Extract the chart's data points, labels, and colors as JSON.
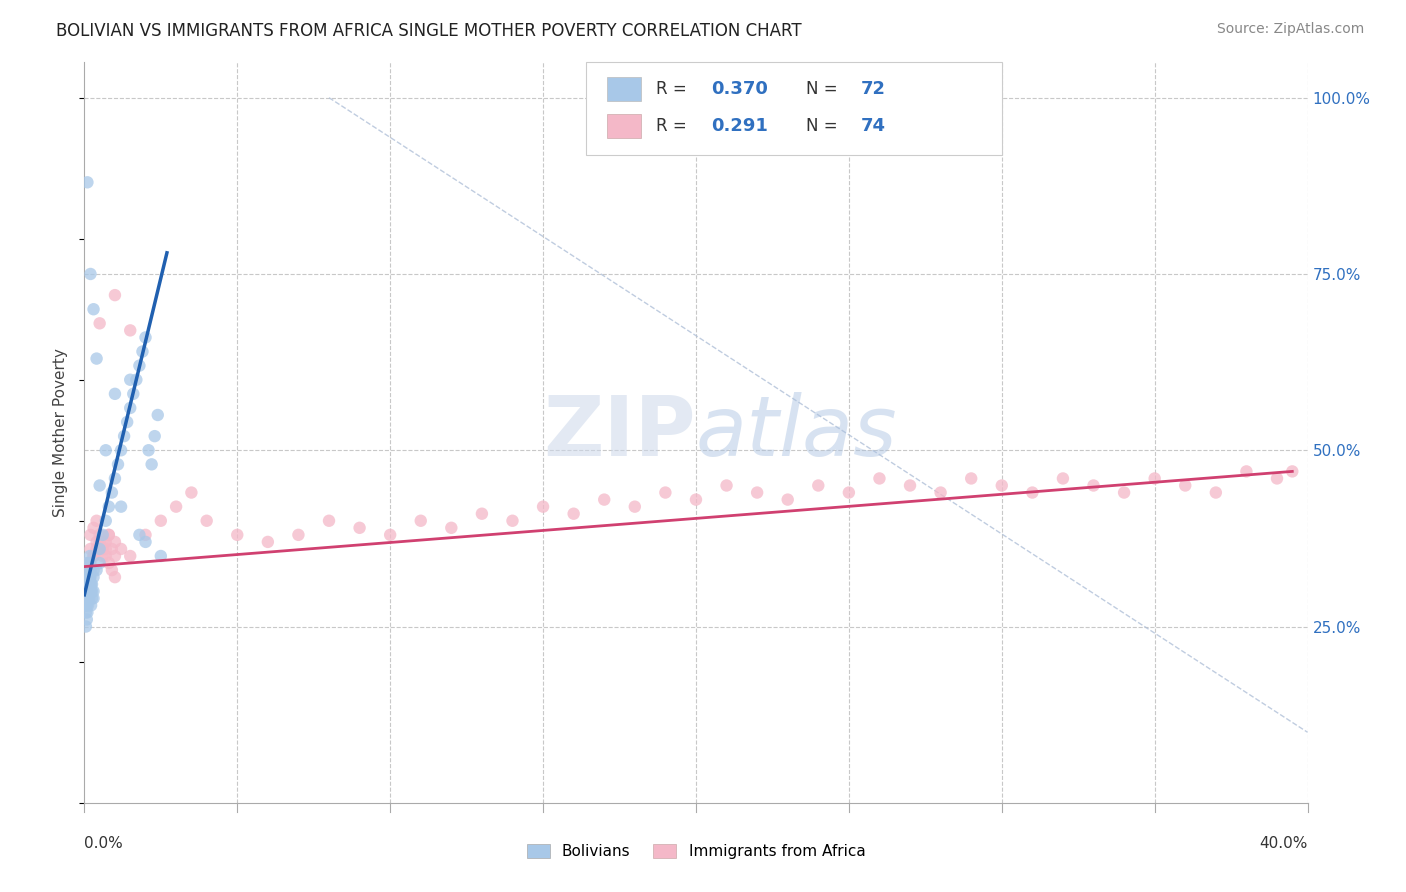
{
  "title": "BOLIVIAN VS IMMIGRANTS FROM AFRICA SINGLE MOTHER POVERTY CORRELATION CHART",
  "source": "Source: ZipAtlas.com",
  "ylabel": "Single Mother Poverty",
  "xlim": [
    0.0,
    0.4
  ],
  "ylim": [
    0.0,
    1.05
  ],
  "color_blue": "#a8c8e8",
  "color_pink": "#f4b8c8",
  "color_blue_line": "#2060b0",
  "color_pink_line": "#d04070",
  "color_diag": "#b0c8e0",
  "watermark_zip": "ZIP",
  "watermark_atlas": "atlas",
  "bolivians_x": [
    0.0005,
    0.0008,
    0.001,
    0.0012,
    0.0015,
    0.0018,
    0.002,
    0.0022,
    0.0025,
    0.003,
    0.0005,
    0.0008,
    0.001,
    0.0012,
    0.0015,
    0.0018,
    0.002,
    0.0022,
    0.0025,
    0.003,
    0.0005,
    0.0008,
    0.001,
    0.0012,
    0.0015,
    0.0018,
    0.002,
    0.0022,
    0.0025,
    0.003,
    0.0005,
    0.0008,
    0.001,
    0.0012,
    0.0015,
    0.0018,
    0.002,
    0.003,
    0.004,
    0.005,
    0.005,
    0.006,
    0.007,
    0.008,
    0.009,
    0.01,
    0.011,
    0.012,
    0.013,
    0.014,
    0.015,
    0.016,
    0.017,
    0.018,
    0.019,
    0.02,
    0.021,
    0.022,
    0.023,
    0.024,
    0.001,
    0.002,
    0.003,
    0.004,
    0.01,
    0.015,
    0.005,
    0.007,
    0.012,
    0.018,
    0.02,
    0.025
  ],
  "bolivians_y": [
    0.32,
    0.3,
    0.34,
    0.31,
    0.33,
    0.35,
    0.32,
    0.3,
    0.31,
    0.33,
    0.28,
    0.29,
    0.31,
    0.3,
    0.32,
    0.34,
    0.33,
    0.31,
    0.3,
    0.29,
    0.27,
    0.28,
    0.29,
    0.3,
    0.31,
    0.32,
    0.33,
    0.28,
    0.29,
    0.3,
    0.25,
    0.26,
    0.27,
    0.28,
    0.29,
    0.3,
    0.31,
    0.32,
    0.33,
    0.34,
    0.36,
    0.38,
    0.4,
    0.42,
    0.44,
    0.46,
    0.48,
    0.5,
    0.52,
    0.54,
    0.56,
    0.58,
    0.6,
    0.62,
    0.64,
    0.66,
    0.5,
    0.48,
    0.52,
    0.55,
    0.88,
    0.75,
    0.7,
    0.63,
    0.58,
    0.6,
    0.45,
    0.5,
    0.42,
    0.38,
    0.37,
    0.35
  ],
  "africa_x": [
    0.001,
    0.002,
    0.003,
    0.004,
    0.005,
    0.006,
    0.007,
    0.008,
    0.009,
    0.01,
    0.001,
    0.002,
    0.003,
    0.004,
    0.005,
    0.006,
    0.007,
    0.008,
    0.009,
    0.01,
    0.002,
    0.003,
    0.004,
    0.005,
    0.006,
    0.007,
    0.008,
    0.01,
    0.012,
    0.015,
    0.02,
    0.025,
    0.03,
    0.035,
    0.04,
    0.05,
    0.06,
    0.07,
    0.08,
    0.09,
    0.1,
    0.11,
    0.12,
    0.13,
    0.14,
    0.15,
    0.16,
    0.17,
    0.18,
    0.19,
    0.2,
    0.21,
    0.22,
    0.23,
    0.24,
    0.25,
    0.26,
    0.27,
    0.28,
    0.29,
    0.3,
    0.31,
    0.32,
    0.33,
    0.34,
    0.35,
    0.36,
    0.37,
    0.38,
    0.39,
    0.005,
    0.01,
    0.015,
    0.395
  ],
  "africa_y": [
    0.34,
    0.36,
    0.35,
    0.37,
    0.36,
    0.35,
    0.37,
    0.38,
    0.36,
    0.35,
    0.33,
    0.34,
    0.35,
    0.36,
    0.37,
    0.36,
    0.35,
    0.34,
    0.33,
    0.32,
    0.38,
    0.39,
    0.4,
    0.38,
    0.37,
    0.36,
    0.38,
    0.37,
    0.36,
    0.35,
    0.38,
    0.4,
    0.42,
    0.44,
    0.4,
    0.38,
    0.37,
    0.38,
    0.4,
    0.39,
    0.38,
    0.4,
    0.39,
    0.41,
    0.4,
    0.42,
    0.41,
    0.43,
    0.42,
    0.44,
    0.43,
    0.45,
    0.44,
    0.43,
    0.45,
    0.44,
    0.46,
    0.45,
    0.44,
    0.46,
    0.45,
    0.44,
    0.46,
    0.45,
    0.44,
    0.46,
    0.45,
    0.44,
    0.47,
    0.46,
    0.68,
    0.72,
    0.67,
    0.47
  ],
  "blue_line_x": [
    0.0,
    0.027
  ],
  "blue_line_y": [
    0.295,
    0.78
  ],
  "pink_line_x": [
    0.0,
    0.395
  ],
  "pink_line_y": [
    0.335,
    0.47
  ],
  "diag_line_x": [
    0.08,
    0.4
  ],
  "diag_line_y": [
    1.0,
    0.1
  ]
}
